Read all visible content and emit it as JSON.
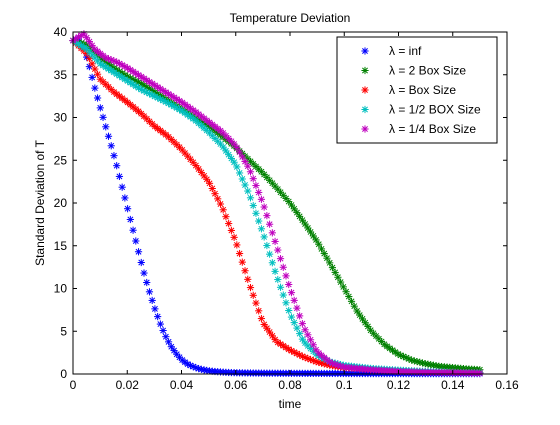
{
  "chart_data": {
    "type": "scatter",
    "title": "Temperature Deviation",
    "xlabel": "time",
    "ylabel": "Standard Deviation of T",
    "xlim": [
      0,
      0.16
    ],
    "ylim": [
      0,
      40
    ],
    "xticks": [
      0,
      0.02,
      0.04,
      0.06,
      0.08,
      0.1,
      0.12,
      0.14,
      0.16
    ],
    "xtick_labels": [
      "0",
      "0.02",
      "0.04",
      "0.06",
      "0.08",
      "0.1",
      "0.12",
      "0.14",
      "0.16"
    ],
    "yticks": [
      0,
      5,
      10,
      15,
      20,
      25,
      30,
      35,
      40
    ],
    "ytick_labels": [
      "0",
      "5",
      "10",
      "15",
      "20",
      "25",
      "30",
      "35",
      "40"
    ],
    "grid": false,
    "legend_position": "top-right",
    "marker": "asterisk",
    "series": [
      {
        "name": "λ = inf",
        "color": "#0000ff",
        "x": [
          0,
          0.002,
          0.004,
          0.006,
          0.008,
          0.01,
          0.012,
          0.014,
          0.016,
          0.018,
          0.02,
          0.022,
          0.024,
          0.026,
          0.028,
          0.03,
          0.032,
          0.034,
          0.036,
          0.038,
          0.04,
          0.042,
          0.044,
          0.046,
          0.048,
          0.05,
          0.052,
          0.054,
          0.056,
          0.058,
          0.06,
          0.065,
          0.07,
          0.08,
          0.09,
          0.1,
          0.11,
          0.12,
          0.13,
          0.14,
          0.15
        ],
        "y": [
          39.0,
          39.2,
          38.2,
          36.0,
          33.5,
          31.2,
          29.0,
          26.8,
          24.5,
          22.0,
          19.5,
          17.0,
          14.5,
          12.0,
          9.8,
          7.8,
          6.0,
          4.5,
          3.3,
          2.4,
          1.7,
          1.2,
          0.9,
          0.65,
          0.5,
          0.38,
          0.3,
          0.25,
          0.2,
          0.17,
          0.15,
          0.12,
          0.1,
          0.08,
          0.07,
          0.06,
          0.05,
          0.05,
          0.04,
          0.04,
          0.04
        ]
      },
      {
        "name": "λ = 2 Box Size",
        "color": "#008000",
        "x": [
          0,
          0.005,
          0.01,
          0.015,
          0.02,
          0.025,
          0.03,
          0.035,
          0.04,
          0.045,
          0.05,
          0.055,
          0.06,
          0.065,
          0.07,
          0.075,
          0.08,
          0.085,
          0.09,
          0.095,
          0.1,
          0.105,
          0.11,
          0.115,
          0.12,
          0.125,
          0.13,
          0.135,
          0.14,
          0.145,
          0.15
        ],
        "y": [
          39.0,
          38.5,
          37.0,
          35.8,
          34.8,
          34.0,
          33.0,
          32.0,
          31.0,
          30.0,
          29.0,
          27.8,
          26.5,
          25.0,
          23.5,
          21.8,
          20.0,
          17.8,
          15.5,
          12.8,
          10.0,
          7.2,
          5.0,
          3.4,
          2.3,
          1.6,
          1.2,
          0.9,
          0.75,
          0.6,
          0.5
        ]
      },
      {
        "name": "λ = Box Size",
        "color": "#ff0000",
        "x": [
          0,
          0.005,
          0.01,
          0.015,
          0.02,
          0.025,
          0.03,
          0.035,
          0.04,
          0.045,
          0.05,
          0.055,
          0.06,
          0.065,
          0.07,
          0.075,
          0.08,
          0.085,
          0.09,
          0.095,
          0.1,
          0.11,
          0.12,
          0.13,
          0.14,
          0.15
        ],
        "y": [
          39.0,
          37.5,
          34.5,
          33.0,
          31.8,
          30.5,
          29.0,
          27.8,
          26.3,
          24.5,
          22.5,
          19.5,
          15.5,
          10.5,
          6.0,
          3.8,
          2.8,
          2.0,
          1.4,
          1.0,
          0.75,
          0.5,
          0.35,
          0.25,
          0.2,
          0.15
        ]
      },
      {
        "name": "λ = 1/2 BOX Size",
        "color": "#00bfbf",
        "x": [
          0,
          0.005,
          0.01,
          0.015,
          0.02,
          0.025,
          0.03,
          0.035,
          0.04,
          0.045,
          0.05,
          0.055,
          0.06,
          0.065,
          0.07,
          0.075,
          0.08,
          0.085,
          0.09,
          0.095,
          0.1,
          0.11,
          0.12,
          0.13,
          0.14,
          0.15
        ],
        "y": [
          39.0,
          38.0,
          36.3,
          35.3,
          34.3,
          33.3,
          32.5,
          31.7,
          30.8,
          29.7,
          28.3,
          26.7,
          24.5,
          21.0,
          16.5,
          11.5,
          7.0,
          3.8,
          2.2,
          1.4,
          1.0,
          0.65,
          0.45,
          0.3,
          0.2,
          0.15
        ]
      },
      {
        "name": "λ = 1/4 Box Size",
        "color": "#bf00bf",
        "x": [
          0,
          0.004,
          0.008,
          0.012,
          0.016,
          0.02,
          0.025,
          0.03,
          0.035,
          0.04,
          0.045,
          0.05,
          0.055,
          0.06,
          0.065,
          0.07,
          0.075,
          0.08,
          0.085,
          0.09,
          0.095,
          0.1,
          0.11,
          0.12,
          0.13,
          0.14,
          0.15
        ],
        "y": [
          39.0,
          39.8,
          38.0,
          37.0,
          36.5,
          35.8,
          34.8,
          33.8,
          32.8,
          31.8,
          30.7,
          29.5,
          28.3,
          26.7,
          24.0,
          20.0,
          15.0,
          10.0,
          5.5,
          2.6,
          1.3,
          0.8,
          0.5,
          0.3,
          0.2,
          0.15,
          0.1
        ]
      }
    ]
  }
}
